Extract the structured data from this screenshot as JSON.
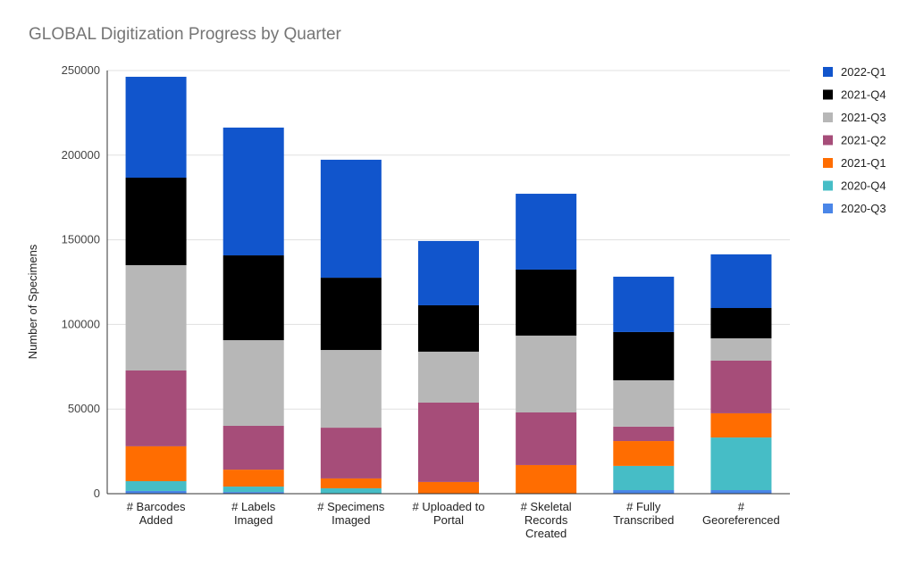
{
  "chart_data": {
    "type": "bar",
    "stacked": true,
    "title": "GLOBAL Digitization Progress by Quarter",
    "xlabel": "",
    "ylabel": "Number of Specimens",
    "ylim": [
      0,
      250000
    ],
    "yticks": [
      0,
      50000,
      100000,
      150000,
      200000,
      250000
    ],
    "ytick_labels": [
      "0",
      "50000",
      "100000",
      "150000",
      "200000",
      "250000"
    ],
    "grid": true,
    "legend_position": "right",
    "categories": [
      [
        "# Barcodes",
        "Added"
      ],
      [
        "# Labels",
        "Imaged"
      ],
      [
        "# Specimens",
        "Imaged"
      ],
      [
        "# Uploaded to",
        "Portal"
      ],
      [
        "# Skeletal",
        "Records",
        "Created"
      ],
      [
        "# Fully",
        "Transcribed"
      ],
      [
        "#",
        "Georeferenced"
      ]
    ],
    "series": [
      {
        "name": "2020-Q3",
        "color": "#4a86e8",
        "values": [
          1600,
          1000,
          0,
          0,
          0,
          2100,
          2100
        ]
      },
      {
        "name": "2020-Q4",
        "color": "#46bdc6",
        "values": [
          5800,
          3200,
          3200,
          0,
          0,
          14300,
          31100
        ]
      },
      {
        "name": "2021-Q1",
        "color": "#ff6d01",
        "values": [
          20600,
          10000,
          5800,
          6900,
          16900,
          14700,
          14300
        ]
      },
      {
        "name": "2021-Q2",
        "color": "#a64d79",
        "values": [
          44800,
          25900,
          30000,
          46900,
          31100,
          8500,
          31100
        ]
      },
      {
        "name": "2021-Q3",
        "color": "#b7b7b7",
        "values": [
          62200,
          50600,
          45900,
          30100,
          45400,
          27400,
          13200
        ]
      },
      {
        "name": "2021-Q4",
        "color": "#000000",
        "values": [
          51700,
          50100,
          42700,
          27400,
          39000,
          28500,
          17900
        ]
      },
      {
        "name": "2022-Q1",
        "color": "#1155cc",
        "values": [
          59600,
          75500,
          69700,
          38000,
          44800,
          32700,
          31700
        ]
      }
    ]
  }
}
